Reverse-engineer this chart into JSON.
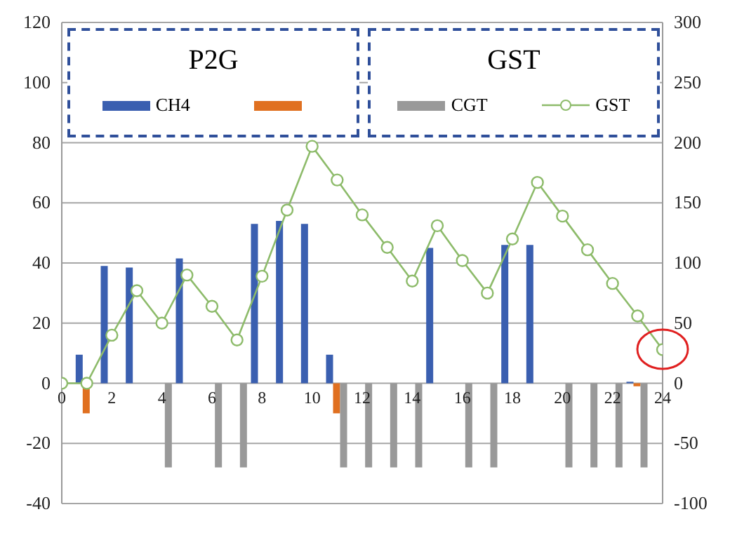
{
  "chart_data": {
    "type": "bar",
    "annotations": [
      "P2G",
      "GST"
    ],
    "xlim": [
      0,
      24
    ],
    "xticks": [
      0,
      2,
      4,
      6,
      8,
      10,
      12,
      14,
      16,
      18,
      20,
      22,
      24
    ],
    "ylim": [
      -40,
      120
    ],
    "yticks": [
      -40,
      -20,
      0,
      20,
      40,
      60,
      80,
      100,
      120
    ],
    "y2lim": [
      -100,
      300
    ],
    "y2ticks": [
      -100,
      -50,
      0,
      50,
      100,
      150,
      200,
      250,
      300
    ],
    "grid": "y",
    "legend": "top",
    "marker": "circle",
    "line_style": "solid",
    "series": [
      {
        "name": "CH4",
        "color": "#3a5fb0",
        "x": [
          1,
          2,
          3,
          5,
          8,
          9,
          10,
          11,
          15,
          18,
          19,
          23
        ],
        "values": [
          9.5,
          39,
          38.5,
          41.5,
          53,
          54,
          53,
          9.5,
          45,
          46,
          46,
          0.5
        ]
      },
      {
        "color": "#e07020",
        "x": [
          1,
          11,
          23
        ],
        "values": [
          -10,
          -10,
          -1
        ]
      },
      {
        "name": "CGT",
        "color": "#999999",
        "x": [
          4,
          6,
          7,
          11,
          12,
          13,
          14,
          16,
          17,
          20,
          21,
          22,
          23
        ],
        "values": [
          -28,
          -28,
          -28,
          -28,
          -28,
          -28,
          -28,
          -28,
          -28,
          -28,
          -28,
          -28,
          -28
        ]
      },
      {
        "name": "GST",
        "type": "line",
        "axis": "y2",
        "color": "#8dbb6a",
        "x": [
          0,
          1,
          2,
          3,
          4,
          5,
          6,
          7,
          8,
          9,
          10,
          11,
          12,
          13,
          14,
          15,
          16,
          17,
          18,
          19,
          20,
          21,
          22,
          23,
          24
        ],
        "values": [
          0,
          0,
          40,
          77,
          50,
          90,
          64,
          36,
          89,
          144,
          197,
          169,
          140,
          113,
          85,
          131,
          102,
          75,
          120,
          167,
          139,
          111,
          83,
          56,
          28
        ]
      }
    ]
  }
}
